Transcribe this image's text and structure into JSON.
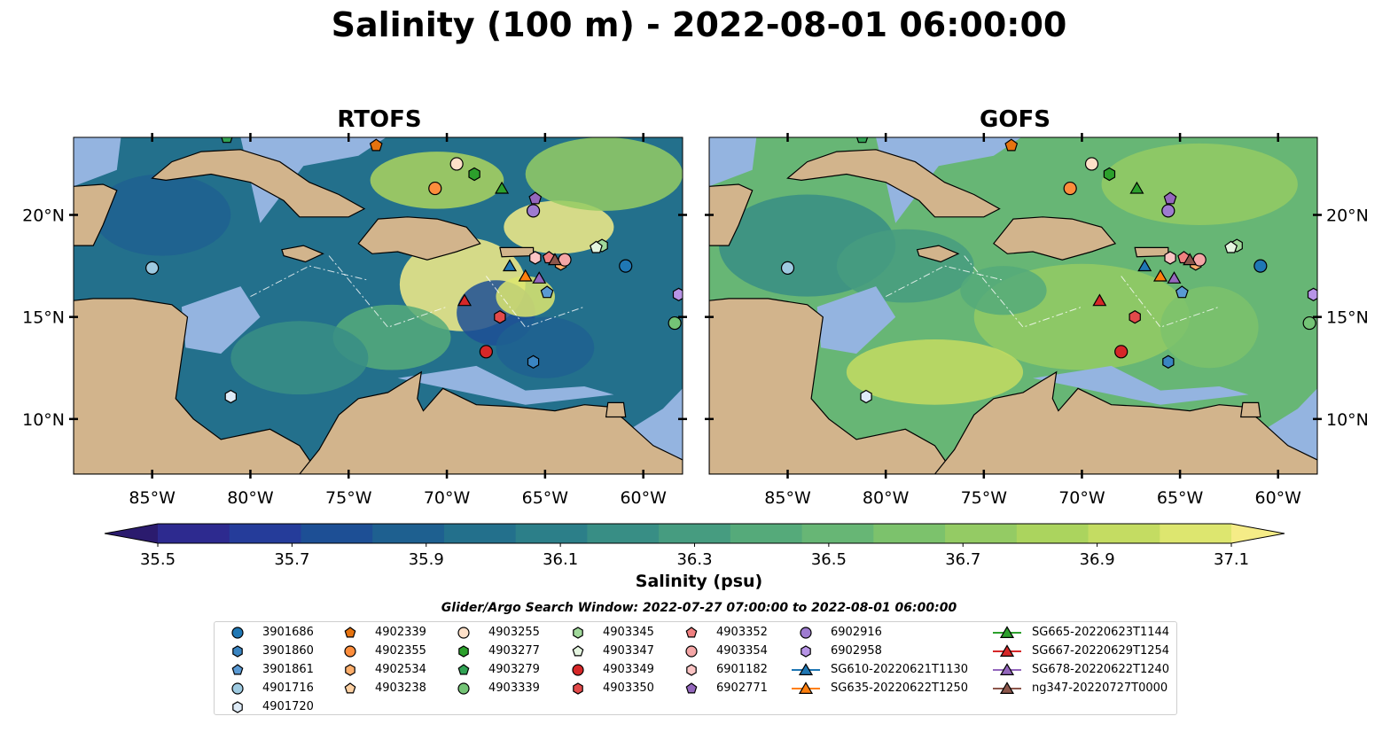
{
  "title": "Salinity (100 m) - 2022-08-01 06:00:00",
  "panels": [
    {
      "title": "RTOFS"
    },
    {
      "title": "GOFS"
    }
  ],
  "map": {
    "lon_range": [
      -89,
      -58
    ],
    "lat_range": [
      7.3,
      23.8
    ],
    "lon_ticks": [
      "85°W",
      "80°W",
      "75°W",
      "70°W",
      "65°W",
      "60°W"
    ],
    "lon_tick_values": [
      -85,
      -80,
      -75,
      -70,
      -65,
      -60
    ],
    "lat_ticks": [
      "10°N",
      "15°N",
      "20°N"
    ],
    "lat_tick_values": [
      10,
      15,
      20
    ],
    "colors": {
      "land": "#d2b48c",
      "shelf": "#94b4e0",
      "deep": "#2a1d6b"
    }
  },
  "colorbar": {
    "label": "Salinity (psu)",
    "min": 35.4,
    "max": 37.2,
    "ticks": [
      "35.5",
      "35.7",
      "35.9",
      "36.1",
      "36.3",
      "36.5",
      "36.7",
      "36.9",
      "37.1"
    ],
    "colors": [
      "#2b1b6e",
      "#2d2a8f",
      "#253c9a",
      "#1d4f95",
      "#1e6090",
      "#23708c",
      "#2c7f89",
      "#388e85",
      "#469c80",
      "#55aa7a",
      "#67b675",
      "#7cc26c",
      "#94cb64",
      "#abd45e",
      "#c4dc62",
      "#dde66f",
      "#f5ec87"
    ]
  },
  "search_window": "Glider/Argo Search Window: 2022-07-27 07:00:00 to 2022-08-01 06:00:00",
  "legend": {
    "columns": [
      [
        {
          "label": "3901686",
          "marker": "circle",
          "color": "#1f77b4"
        },
        {
          "label": "3901860",
          "marker": "hexagon",
          "color": "#3a85c2"
        },
        {
          "label": "3901861",
          "marker": "pentagon",
          "color": "#5a9ad4"
        },
        {
          "label": "4901716",
          "marker": "circle",
          "color": "#9ecae1"
        },
        {
          "label": "4901720",
          "marker": "hexagon",
          "color": "#deebf7"
        }
      ],
      [
        {
          "label": "4902339",
          "marker": "pentagon",
          "color": "#e6730f"
        },
        {
          "label": "4902355",
          "marker": "circle",
          "color": "#fd8d3c"
        },
        {
          "label": "4902534",
          "marker": "hexagon",
          "color": "#fdae6b"
        },
        {
          "label": "4903238",
          "marker": "pentagon",
          "color": "#fdd0a2"
        }
      ],
      [
        {
          "label": "4903255",
          "marker": "circle",
          "color": "#fee0c8"
        },
        {
          "label": "4903277",
          "marker": "hexagon",
          "color": "#2ca02c"
        },
        {
          "label": "4903279",
          "marker": "pentagon",
          "color": "#31a354"
        },
        {
          "label": "4903339",
          "marker": "circle",
          "color": "#74c476"
        }
      ],
      [
        {
          "label": "4903345",
          "marker": "hexagon",
          "color": "#a1d99b"
        },
        {
          "label": "4903347",
          "marker": "pentagon",
          "color": "#e5f5e0"
        },
        {
          "label": "4903349",
          "marker": "circle",
          "color": "#d62728"
        },
        {
          "label": "4903350",
          "marker": "hexagon",
          "color": "#e34a4a"
        }
      ],
      [
        {
          "label": "4903352",
          "marker": "pentagon",
          "color": "#f08080"
        },
        {
          "label": "4903354",
          "marker": "circle",
          "color": "#f4a6a6"
        },
        {
          "label": "6901182",
          "marker": "hexagon",
          "color": "#fbc4c4"
        },
        {
          "label": "6902771",
          "marker": "pentagon",
          "color": "#9467bd"
        }
      ],
      [
        {
          "label": "6902916",
          "marker": "circle",
          "color": "#9e7bd0"
        },
        {
          "label": "6902958",
          "marker": "hexagon",
          "color": "#b794e6"
        },
        {
          "label": "SG610-20220621T1130",
          "marker": "triangle-line",
          "color": "#1f77b4"
        },
        {
          "label": "SG635-20220622T1250",
          "marker": "triangle-line",
          "color": "#ff7f0e"
        }
      ],
      [
        {
          "label": "SG665-20220623T1144",
          "marker": "triangle-line",
          "color": "#2ca02c"
        },
        {
          "label": "SG667-20220629T1254",
          "marker": "triangle-line",
          "color": "#d62728"
        },
        {
          "label": "SG678-20220622T1240",
          "marker": "triangle-line",
          "color": "#9467bd"
        },
        {
          "label": "ng347-20220727T0000",
          "marker": "triangle-line",
          "color": "#8c564b"
        }
      ]
    ]
  },
  "observations": [
    {
      "id": "3901686",
      "lon": -60.9,
      "lat": 17.5,
      "marker": "circle",
      "color": "#1f77b4"
    },
    {
      "id": "3901860",
      "lon": -65.6,
      "lat": 12.8,
      "marker": "hexagon",
      "color": "#3a85c2"
    },
    {
      "id": "3901861",
      "lon": -64.9,
      "lat": 16.2,
      "marker": "pentagon",
      "color": "#5a9ad4"
    },
    {
      "id": "4901716",
      "lon": -85.0,
      "lat": 17.4,
      "marker": "circle",
      "color": "#9ecae1"
    },
    {
      "id": "4901720",
      "lon": -81.0,
      "lat": 11.1,
      "marker": "hexagon",
      "color": "#deebf7"
    },
    {
      "id": "4902339",
      "lon": -73.6,
      "lat": 23.4,
      "marker": "pentagon",
      "color": "#e6730f"
    },
    {
      "id": "4902355",
      "lon": -70.6,
      "lat": 21.3,
      "marker": "circle",
      "color": "#fd8d3c"
    },
    {
      "id": "4902534",
      "lon": -64.2,
      "lat": 17.6,
      "marker": "hexagon",
      "color": "#fdae6b"
    },
    {
      "id": "4903255",
      "lon": -69.5,
      "lat": 22.5,
      "marker": "circle",
      "color": "#fee0c8"
    },
    {
      "id": "4903277",
      "lon": -68.6,
      "lat": 22.0,
      "marker": "hexagon",
      "color": "#2ca02c"
    },
    {
      "id": "4903279",
      "lon": -81.2,
      "lat": 23.8,
      "marker": "pentagon",
      "color": "#31a354"
    },
    {
      "id": "4903339",
      "lon": -58.4,
      "lat": 14.7,
      "marker": "circle",
      "color": "#74c476"
    },
    {
      "id": "4903345",
      "lon": -62.1,
      "lat": 18.5,
      "marker": "hexagon",
      "color": "#a1d99b"
    },
    {
      "id": "4903347",
      "lon": -62.4,
      "lat": 18.4,
      "marker": "pentagon",
      "color": "#e5f5e0"
    },
    {
      "id": "4903349",
      "lon": -68.0,
      "lat": 13.3,
      "marker": "circle",
      "color": "#d62728"
    },
    {
      "id": "4903350",
      "lon": -67.3,
      "lat": 15.0,
      "marker": "hexagon",
      "color": "#e34a4a"
    },
    {
      "id": "4903352",
      "lon": -64.8,
      "lat": 17.9,
      "marker": "pentagon",
      "color": "#f08080"
    },
    {
      "id": "4903354",
      "lon": -64.0,
      "lat": 17.8,
      "marker": "circle",
      "color": "#f4a6a6"
    },
    {
      "id": "6901182",
      "lon": -65.5,
      "lat": 17.9,
      "marker": "hexagon",
      "color": "#fbc4c4"
    },
    {
      "id": "6902771",
      "lon": -65.5,
      "lat": 20.8,
      "marker": "pentagon",
      "color": "#9467bd"
    },
    {
      "id": "6902916",
      "lon": -65.6,
      "lat": 20.2,
      "marker": "circle",
      "color": "#9e7bd0"
    },
    {
      "id": "6902958",
      "lon": -58.2,
      "lat": 16.1,
      "marker": "hexagon",
      "color": "#b794e6"
    },
    {
      "id": "SG610-20220621T1130",
      "lon": -66.8,
      "lat": 17.5,
      "marker": "triangle",
      "color": "#1f77b4"
    },
    {
      "id": "SG635-20220622T1250",
      "lon": -66.0,
      "lat": 17.0,
      "marker": "triangle",
      "color": "#ff7f0e"
    },
    {
      "id": "SG665-20220623T1144",
      "lon": -67.2,
      "lat": 21.3,
      "marker": "triangle",
      "color": "#2ca02c"
    },
    {
      "id": "SG667-20220629T1254",
      "lon": -69.1,
      "lat": 15.8,
      "marker": "triangle",
      "color": "#d62728"
    },
    {
      "id": "SG678-20220622T1240",
      "lon": -65.3,
      "lat": 16.9,
      "marker": "triangle",
      "color": "#9467bd"
    },
    {
      "id": "ng347-20220727T0000",
      "lon": -64.5,
      "lat": 17.8,
      "marker": "triangle",
      "color": "#8c564b"
    }
  ]
}
